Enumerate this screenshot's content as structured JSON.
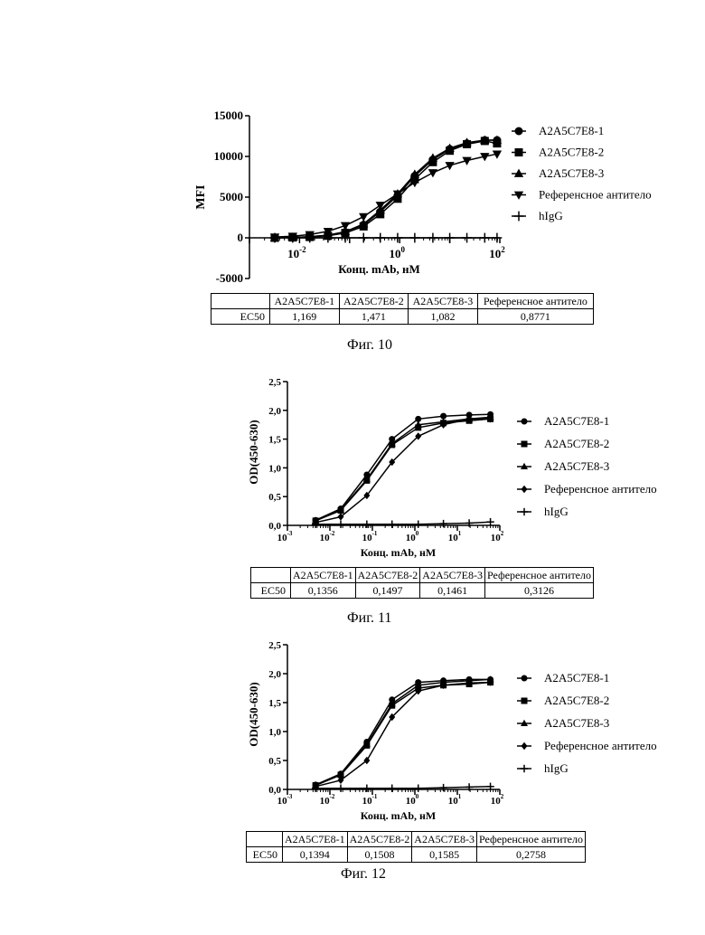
{
  "series_styles": [
    {
      "name": "A2A5C7E8-1",
      "marker": "circle-icon"
    },
    {
      "name": "A2A5C7E8-2",
      "marker": "square-icon"
    },
    {
      "name": "A2A5C7E8-3",
      "marker": "triangle-up-icon"
    },
    {
      "name": "Референсное антитело",
      "marker": "triangle-down-icon"
    },
    {
      "name": "hIgG",
      "marker": "plus-icon"
    }
  ],
  "figures": [
    {
      "caption": "Фиг. 10",
      "table": {
        "headers": [
          "A2A5C7E8-1",
          "A2A5C7E8-2",
          "A2A5C7E8-3",
          "Референсное антитело"
        ],
        "row_label": "EC50",
        "values": [
          "1,169",
          "1,471",
          "1,082",
          "0,8771"
        ]
      }
    },
    {
      "caption": "Фиг. 11",
      "table": {
        "headers": [
          "A2A5C7E8-1",
          "A2A5C7E8-2",
          "A2A5C7E8-3",
          "Референсное антитело"
        ],
        "row_label": "EC50",
        "values": [
          "0,1356",
          "0,1497",
          "0,1461",
          "0,3126"
        ]
      }
    },
    {
      "caption": "Фиг. 12",
      "table": {
        "headers": [
          "A2A5C7E8-1",
          "A2A5C7E8-2",
          "A2A5C7E8-3",
          "Референсное антитело"
        ],
        "row_label": "EC50",
        "values": [
          "0,1394",
          "0,1508",
          "0,1585",
          "0,2758"
        ]
      }
    }
  ],
  "chart_data": [
    {
      "type": "scatter",
      "title": "",
      "xlabel": "Конц. mAb, нМ",
      "ylabel": "MFI",
      "xscale": "log",
      "xlim": [
        0.001,
        100
      ],
      "ylim": [
        -5000,
        15000
      ],
      "x_ticks": [
        0.01,
        1,
        100
      ],
      "x_tick_labels": [
        {
          "base": "10",
          "exp": "-2"
        },
        {
          "base": "10",
          "exp": "0"
        },
        {
          "base": "10",
          "exp": "2"
        }
      ],
      "y_ticks": [
        -5000,
        0,
        5000,
        10000,
        15000
      ],
      "y_tick_labels": [
        "-5000",
        "0",
        "5000",
        "10000",
        "15000"
      ],
      "x": [
        0.0032,
        0.0073,
        0.016,
        0.037,
        0.082,
        0.19,
        0.41,
        0.91,
        2,
        4.6,
        10,
        22,
        50,
        88
      ],
      "series": [
        {
          "name": "A2A5C7E8-1",
          "marker": "circle",
          "values": [
            0,
            50,
            120,
            300,
            700,
            1600,
            3200,
            5200,
            7600,
            9600,
            10900,
            11600,
            12000,
            12000
          ]
        },
        {
          "name": "A2A5C7E8-2",
          "marker": "square",
          "values": [
            0,
            40,
            100,
            250,
            600,
            1400,
            2900,
            4800,
            7200,
            9300,
            10700,
            11500,
            11900,
            11600
          ]
        },
        {
          "name": "A2A5C7E8-3",
          "marker": "triangle-up",
          "values": [
            0,
            50,
            130,
            330,
            760,
            1700,
            3400,
            5400,
            7800,
            9800,
            11000,
            11700,
            12000,
            12000
          ]
        },
        {
          "name": "Референсное антитело",
          "marker": "triangle-down",
          "values": [
            100,
            200,
            400,
            800,
            1500,
            2600,
            4000,
            5400,
            6800,
            8000,
            8900,
            9500,
            10000,
            10300
          ]
        },
        {
          "name": "hIgG",
          "marker": "plus",
          "values": [
            0,
            0,
            0,
            0,
            0,
            0,
            0,
            0,
            0,
            0,
            0,
            0,
            0,
            0
          ]
        }
      ],
      "legend": "right"
    },
    {
      "type": "scatter",
      "title": "",
      "xlabel": "Конц. mAb, нМ",
      "ylabel": "OD(450-630)",
      "xscale": "log",
      "xlim": [
        0.001,
        100
      ],
      "ylim": [
        0,
        2.5
      ],
      "x_ticks": [
        0.001,
        0.01,
        0.1,
        1,
        10,
        100
      ],
      "x_tick_labels": [
        {
          "base": "10",
          "exp": "-3"
        },
        {
          "base": "10",
          "exp": "-2"
        },
        {
          "base": "10",
          "exp": "-1"
        },
        {
          "base": "10",
          "exp": "0"
        },
        {
          "base": "10",
          "exp": "1"
        },
        {
          "base": "10",
          "exp": "2"
        }
      ],
      "y_ticks": [
        0,
        0.5,
        1,
        1.5,
        2,
        2.5
      ],
      "y_tick_labels": [
        "0,0",
        "0,5",
        "1,0",
        "1,5",
        "2,0",
        "2,5"
      ],
      "x": [
        0.0046,
        0.018,
        0.074,
        0.29,
        1.2,
        4.7,
        19,
        60
      ],
      "series": [
        {
          "name": "A2A5C7E8-1",
          "marker": "circle",
          "values": [
            0.09,
            0.29,
            0.88,
            1.5,
            1.85,
            1.9,
            1.92,
            1.93
          ]
        },
        {
          "name": "A2A5C7E8-2",
          "marker": "square",
          "values": [
            0.08,
            0.26,
            0.78,
            1.4,
            1.7,
            1.78,
            1.82,
            1.85
          ]
        },
        {
          "name": "A2A5C7E8-3",
          "marker": "triangle-up",
          "values": [
            0.08,
            0.27,
            0.8,
            1.42,
            1.75,
            1.8,
            1.85,
            1.88
          ]
        },
        {
          "name": "Референсное антитело",
          "marker": "diamond",
          "values": [
            0.05,
            0.15,
            0.52,
            1.1,
            1.55,
            1.75,
            1.85,
            1.85
          ]
        },
        {
          "name": "hIgG",
          "marker": "plus",
          "values": [
            0.02,
            0.02,
            0.02,
            0.02,
            0.02,
            0.03,
            0.04,
            0.06
          ]
        }
      ],
      "legend": "right"
    },
    {
      "type": "scatter",
      "title": "",
      "xlabel": "Конц. mAb, нМ",
      "ylabel": "OD(450-630)",
      "xscale": "log",
      "xlim": [
        0.001,
        100
      ],
      "ylim": [
        0,
        2.5
      ],
      "x_ticks": [
        0.001,
        0.01,
        0.1,
        1,
        10,
        100
      ],
      "x_tick_labels": [
        {
          "base": "10",
          "exp": "-3"
        },
        {
          "base": "10",
          "exp": "-2"
        },
        {
          "base": "10",
          "exp": "-1"
        },
        {
          "base": "10",
          "exp": "0"
        },
        {
          "base": "10",
          "exp": "1"
        },
        {
          "base": "10",
          "exp": "2"
        }
      ],
      "y_ticks": [
        0,
        0.5,
        1,
        1.5,
        2,
        2.5
      ],
      "y_tick_labels": [
        "0,0",
        "0,5",
        "1,0",
        "1,5",
        "2,0",
        "2,5"
      ],
      "x": [
        0.0046,
        0.018,
        0.074,
        0.29,
        1.2,
        4.7,
        19,
        60
      ],
      "series": [
        {
          "name": "A2A5C7E8-1",
          "marker": "circle",
          "values": [
            0.08,
            0.27,
            0.82,
            1.55,
            1.85,
            1.88,
            1.9,
            1.9
          ]
        },
        {
          "name": "A2A5C7E8-2",
          "marker": "square",
          "values": [
            0.07,
            0.25,
            0.76,
            1.45,
            1.75,
            1.8,
            1.82,
            1.85
          ]
        },
        {
          "name": "A2A5C7E8-3",
          "marker": "triangle-up",
          "values": [
            0.07,
            0.26,
            0.78,
            1.48,
            1.8,
            1.85,
            1.88,
            1.9
          ]
        },
        {
          "name": "Референсное антитело",
          "marker": "diamond",
          "values": [
            0.05,
            0.16,
            0.5,
            1.25,
            1.7,
            1.8,
            1.84,
            1.85
          ]
        },
        {
          "name": "hIgG",
          "marker": "plus",
          "values": [
            0.02,
            0.02,
            0.02,
            0.02,
            0.02,
            0.03,
            0.04,
            0.05
          ]
        }
      ],
      "legend": "right"
    }
  ]
}
